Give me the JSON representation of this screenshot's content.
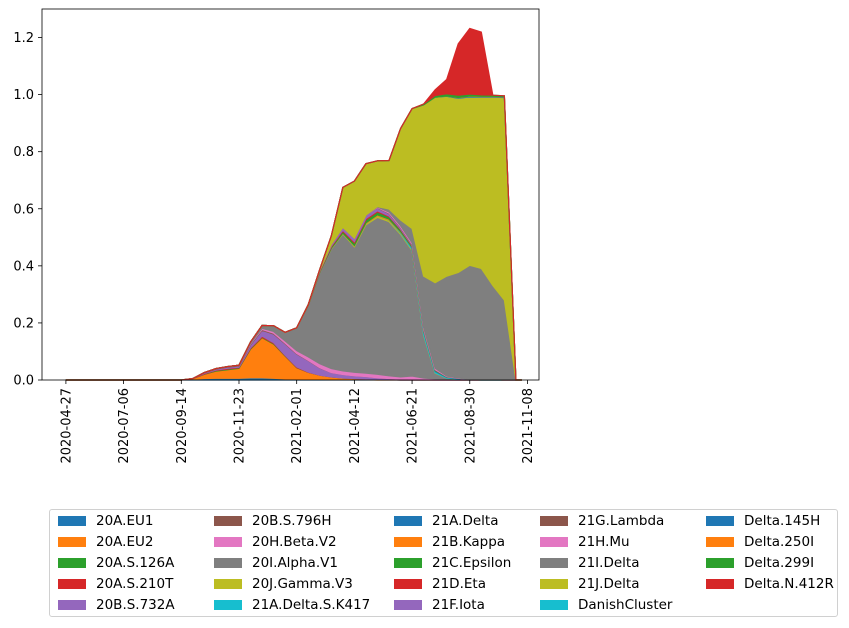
{
  "chart_data": {
    "type": "area",
    "stacked": true,
    "x_ticks": [
      "2020-04-27",
      "2020-07-06",
      "2020-09-14",
      "2020-11-23",
      "2021-02-01",
      "2021-04-12",
      "2021-06-21",
      "2021-08-30",
      "2021-11-08"
    ],
    "ylim": [
      0,
      1.3
    ],
    "y_ticks": [
      "0.0",
      "0.2",
      "0.4",
      "0.6",
      "0.8",
      "1.0",
      "1.2"
    ],
    "x": [
      "2020-04-27",
      "2020-06-15",
      "2020-08-03",
      "2020-09-14",
      "2020-09-28",
      "2020-10-12",
      "2020-10-26",
      "2020-11-09",
      "2020-11-23",
      "2020-12-07",
      "2020-12-21",
      "2021-01-04",
      "2021-01-18",
      "2021-02-01",
      "2021-02-15",
      "2021-03-01",
      "2021-03-15",
      "2021-03-29",
      "2021-04-12",
      "2021-04-26",
      "2021-05-10",
      "2021-05-24",
      "2021-06-07",
      "2021-06-21",
      "2021-07-05",
      "2021-07-19",
      "2021-08-02",
      "2021-08-16",
      "2021-08-30",
      "2021-09-13",
      "2021-09-27",
      "2021-10-11",
      "2021-10-25",
      "2021-11-01"
    ],
    "series": [
      {
        "name": "20A.EU1",
        "color": "#1f77b4",
        "values": [
          0,
          0,
          0,
          0,
          0.003,
          0.005,
          0.006,
          0.006,
          0.006,
          0.008,
          0.008,
          0.006,
          0.004,
          0.003,
          0.002,
          0.002,
          0.001,
          0.001,
          0.001,
          0.001,
          0,
          0,
          0,
          0,
          0,
          0,
          0,
          0,
          0,
          0,
          0,
          0,
          0,
          0
        ]
      },
      {
        "name": "20A.EU2",
        "color": "#ff7f0e",
        "values": [
          0,
          0,
          0,
          0,
          0.002,
          0.015,
          0.025,
          0.03,
          0.035,
          0.1,
          0.14,
          0.12,
          0.08,
          0.04,
          0.025,
          0.015,
          0.01,
          0.006,
          0.004,
          0.003,
          0.002,
          0.001,
          0,
          0,
          0,
          0,
          0,
          0,
          0,
          0,
          0,
          0,
          0,
          0
        ]
      },
      {
        "name": "20A.S.126A",
        "color": "#2ca02c",
        "values": [
          0,
          0,
          0,
          0,
          0,
          0.001,
          0.002,
          0.002,
          0.002,
          0.002,
          0.002,
          0.002,
          0.001,
          0.001,
          0,
          0,
          0,
          0,
          0,
          0,
          0,
          0,
          0,
          0,
          0,
          0,
          0,
          0,
          0,
          0,
          0,
          0,
          0,
          0
        ]
      },
      {
        "name": "20A.S.210T",
        "color": "#d62728",
        "values": [
          0,
          0,
          0,
          0,
          0,
          0.002,
          0.002,
          0.003,
          0.002,
          0.003,
          0.004,
          0.003,
          0.002,
          0.002,
          0.001,
          0,
          0,
          0,
          0,
          0,
          0,
          0,
          0,
          0,
          0,
          0,
          0,
          0,
          0,
          0,
          0,
          0,
          0,
          0
        ]
      },
      {
        "name": "20B.S.732A",
        "color": "#9467bd",
        "values": [
          0,
          0,
          0,
          0,
          0,
          0.002,
          0.003,
          0.004,
          0.004,
          0.01,
          0.02,
          0.03,
          0.04,
          0.045,
          0.04,
          0.025,
          0.015,
          0.012,
          0.01,
          0.008,
          0.006,
          0.004,
          0.003,
          0.002,
          0.001,
          0,
          0,
          0,
          0,
          0,
          0,
          0,
          0,
          0
        ]
      },
      {
        "name": "20B.S.796H",
        "color": "#8c564b",
        "values": [
          0,
          0,
          0,
          0,
          0,
          0.001,
          0.002,
          0.002,
          0.002,
          0.003,
          0.003,
          0.003,
          0.002,
          0.002,
          0.001,
          0.001,
          0,
          0,
          0,
          0,
          0,
          0,
          0,
          0,
          0,
          0,
          0,
          0,
          0,
          0,
          0,
          0,
          0,
          0
        ]
      },
      {
        "name": "20H.Beta.V2",
        "color": "#e377c2",
        "values": [
          0,
          0,
          0,
          0,
          0,
          0,
          0,
          0,
          0.001,
          0.002,
          0.004,
          0.006,
          0.008,
          0.01,
          0.012,
          0.014,
          0.014,
          0.013,
          0.012,
          0.012,
          0.012,
          0.01,
          0.008,
          0.012,
          0.006,
          0.004,
          0.002,
          0.001,
          0,
          0,
          0,
          0,
          0,
          0
        ]
      },
      {
        "name": "20I.Alpha.V1",
        "color": "#7f7f7f",
        "values": [
          0,
          0,
          0,
          0,
          0,
          0,
          0,
          0,
          0,
          0.005,
          0.01,
          0.02,
          0.03,
          0.08,
          0.18,
          0.32,
          0.42,
          0.48,
          0.44,
          0.52,
          0.55,
          0.54,
          0.5,
          0.44,
          0.15,
          0.02,
          0.005,
          0.002,
          0.001,
          0,
          0,
          0,
          0,
          0
        ]
      },
      {
        "name": "20J.Gamma.V3",
        "color": "#bcbd22",
        "values": [
          0,
          0,
          0,
          0,
          0,
          0,
          0,
          0,
          0,
          0,
          0,
          0,
          0,
          0,
          0,
          0.001,
          0.002,
          0.003,
          0.004,
          0.005,
          0.006,
          0.005,
          0.004,
          0.003,
          0.002,
          0.001,
          0,
          0,
          0,
          0,
          0,
          0,
          0,
          0
        ]
      },
      {
        "name": "21A.Delta.S.K417",
        "color": "#17becf",
        "values": [
          0,
          0,
          0,
          0,
          0,
          0,
          0,
          0,
          0,
          0,
          0,
          0,
          0,
          0,
          0,
          0,
          0,
          0,
          0,
          0,
          0,
          0.001,
          0.003,
          0.006,
          0.01,
          0.005,
          0.002,
          0.001,
          0,
          0,
          0,
          0,
          0,
          0
        ]
      },
      {
        "name": "21A.Delta",
        "color": "#1f77b4",
        "values": [
          0,
          0,
          0,
          0,
          0,
          0,
          0,
          0,
          0,
          0,
          0,
          0,
          0,
          0,
          0,
          0,
          0,
          0,
          0,
          0,
          0,
          0,
          0.001,
          0.002,
          0.003,
          0.003,
          0.002,
          0.002,
          0.001,
          0.001,
          0.001,
          0,
          0,
          0
        ]
      },
      {
        "name": "21B.Kappa",
        "color": "#ff7f0e",
        "values": [
          0,
          0,
          0,
          0,
          0,
          0,
          0,
          0,
          0,
          0,
          0,
          0,
          0,
          0,
          0,
          0,
          0,
          0,
          0.001,
          0.002,
          0.003,
          0.003,
          0.002,
          0.001,
          0.001,
          0,
          0,
          0,
          0,
          0,
          0,
          0,
          0,
          0
        ]
      },
      {
        "name": "21C.Epsilon",
        "color": "#2ca02c",
        "values": [
          0,
          0,
          0,
          0,
          0,
          0,
          0,
          0,
          0,
          0,
          0,
          0,
          0,
          0,
          0.001,
          0.002,
          0.004,
          0.006,
          0.008,
          0.01,
          0.01,
          0.008,
          0.006,
          0.004,
          0.003,
          0.002,
          0.001,
          0,
          0,
          0,
          0,
          0,
          0,
          0
        ]
      },
      {
        "name": "21D.Eta",
        "color": "#d62728",
        "values": [
          0,
          0,
          0,
          0,
          0,
          0,
          0,
          0,
          0,
          0,
          0,
          0,
          0,
          0,
          0.001,
          0.002,
          0.003,
          0.004,
          0.005,
          0.005,
          0.004,
          0.003,
          0.002,
          0.001,
          0,
          0,
          0,
          0,
          0,
          0,
          0,
          0,
          0,
          0
        ]
      },
      {
        "name": "21F.Iota",
        "color": "#9467bd",
        "values": [
          0,
          0,
          0,
          0,
          0,
          0,
          0,
          0,
          0,
          0,
          0,
          0,
          0,
          0,
          0.001,
          0.003,
          0.006,
          0.01,
          0.012,
          0.012,
          0.01,
          0.008,
          0.005,
          0.003,
          0.002,
          0.001,
          0,
          0,
          0,
          0,
          0,
          0,
          0,
          0
        ]
      },
      {
        "name": "21G.Lambda",
        "color": "#8c564b",
        "values": [
          0,
          0,
          0,
          0,
          0,
          0,
          0,
          0,
          0,
          0,
          0,
          0,
          0,
          0,
          0,
          0,
          0,
          0,
          0,
          0,
          0.001,
          0.002,
          0.002,
          0.002,
          0.001,
          0.001,
          0,
          0,
          0,
          0,
          0,
          0,
          0,
          0
        ]
      },
      {
        "name": "21H.Mu",
        "color": "#e377c2",
        "values": [
          0,
          0,
          0,
          0,
          0,
          0,
          0,
          0,
          0,
          0,
          0,
          0,
          0,
          0,
          0,
          0,
          0,
          0,
          0,
          0,
          0.002,
          0.004,
          0.005,
          0.005,
          0.005,
          0.004,
          0.002,
          0.001,
          0,
          0,
          0,
          0,
          0,
          0
        ]
      },
      {
        "name": "21I.Delta",
        "color": "#7f7f7f",
        "values": [
          0,
          0,
          0,
          0,
          0,
          0,
          0,
          0,
          0,
          0,
          0,
          0,
          0,
          0,
          0,
          0,
          0,
          0,
          0,
          0,
          0.002,
          0.01,
          0.02,
          0.05,
          0.18,
          0.3,
          0.35,
          0.37,
          0.4,
          0.39,
          0.33,
          0.28,
          0,
          0
        ]
      },
      {
        "name": "21J.Delta",
        "color": "#bcbd22",
        "values": [
          0,
          0,
          0,
          0,
          0,
          0,
          0,
          0,
          0,
          0,
          0,
          0,
          0,
          0,
          0,
          0.003,
          0.03,
          0.14,
          0.2,
          0.18,
          0.16,
          0.17,
          0.32,
          0.42,
          0.6,
          0.65,
          0.63,
          0.61,
          0.59,
          0.6,
          0.66,
          0.71,
          0,
          0
        ]
      },
      {
        "name": "DanishCluster",
        "color": "#17becf",
        "values": [
          0,
          0,
          0,
          0,
          0,
          0,
          0,
          0,
          0,
          0,
          0,
          0,
          0,
          0,
          0,
          0,
          0,
          0,
          0,
          0,
          0,
          0,
          0,
          0,
          0,
          0,
          0,
          0,
          0,
          0,
          0,
          0,
          0,
          0
        ]
      },
      {
        "name": "Delta.145H",
        "color": "#1f77b4",
        "values": [
          0,
          0,
          0,
          0,
          0,
          0,
          0,
          0,
          0,
          0,
          0,
          0,
          0,
          0,
          0,
          0,
          0,
          0,
          0,
          0,
          0,
          0,
          0,
          0,
          0,
          0,
          0.001,
          0.002,
          0.002,
          0.002,
          0.002,
          0.002,
          0,
          0
        ]
      },
      {
        "name": "Delta.250I",
        "color": "#ff7f0e",
        "values": [
          0,
          0,
          0,
          0,
          0,
          0,
          0,
          0,
          0,
          0,
          0,
          0,
          0,
          0,
          0,
          0,
          0,
          0,
          0,
          0,
          0,
          0,
          0,
          0,
          0,
          0,
          0,
          0.001,
          0.001,
          0.001,
          0.001,
          0.001,
          0,
          0
        ]
      },
      {
        "name": "Delta.299I",
        "color": "#2ca02c",
        "values": [
          0,
          0,
          0,
          0,
          0,
          0,
          0,
          0,
          0,
          0,
          0,
          0,
          0,
          0,
          0,
          0,
          0,
          0,
          0,
          0,
          0,
          0,
          0,
          0,
          0.003,
          0.006,
          0.008,
          0.008,
          0.007,
          0.005,
          0.004,
          0.003,
          0,
          0
        ]
      },
      {
        "name": "Delta.N.412R",
        "color": "#d62728",
        "values": [
          0,
          0,
          0,
          0,
          0,
          0,
          0,
          0,
          0,
          0,
          0,
          0,
          0,
          0,
          0,
          0,
          0,
          0,
          0,
          0,
          0,
          0,
          0,
          0,
          0,
          0.02,
          0.05,
          0.18,
          0.23,
          0.22,
          0,
          0,
          0,
          0
        ]
      }
    ],
    "legend_placement": "bottom",
    "legend_columns": 5,
    "grid": false
  }
}
